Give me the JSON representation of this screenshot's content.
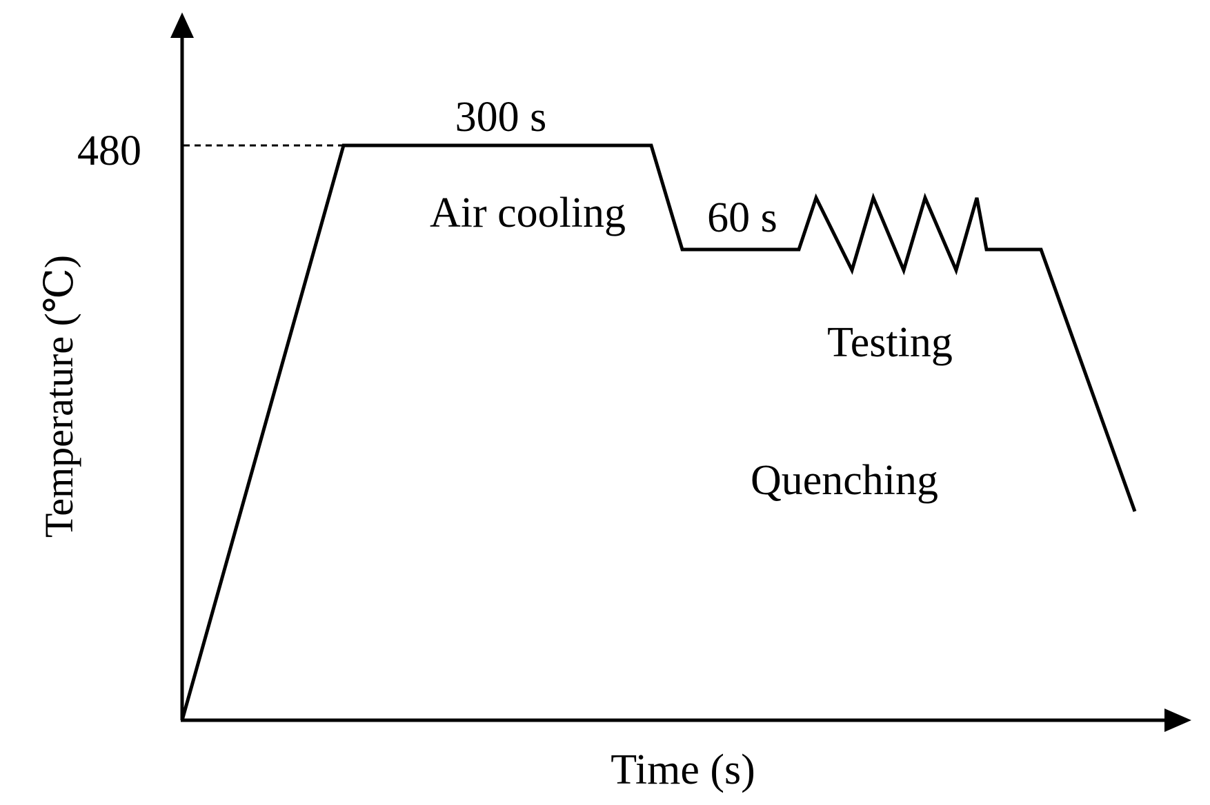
{
  "diagram": {
    "y_axis_label": "Temperature (℃)",
    "x_axis_label": "Time (s)",
    "y_tick_label": "480",
    "labels": {
      "hold_300": "300 s",
      "air_cooling": "Air cooling",
      "hold_60": "60 s",
      "testing": "Testing",
      "quenching": "Quenching"
    },
    "colors": {
      "line": "#000000",
      "background": "#ffffff"
    }
  }
}
